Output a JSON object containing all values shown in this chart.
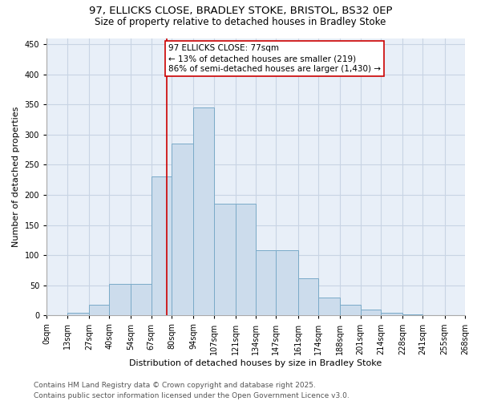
{
  "title1": "97, ELLICKS CLOSE, BRADLEY STOKE, BRISTOL, BS32 0EP",
  "title2": "Size of property relative to detached houses in Bradley Stoke",
  "xlabel": "Distribution of detached houses by size in Bradley Stoke",
  "ylabel": "Number of detached properties",
  "bar_color": "#ccdcec",
  "bar_edge_color": "#7aaac8",
  "grid_color": "#c8d4e4",
  "background_color": "#e8eff8",
  "annotation_text": "97 ELLICKS CLOSE: 77sqm\n← 13% of detached houses are smaller (219)\n86% of semi-detached houses are larger (1,430) →",
  "vline_x": 77,
  "vline_color": "#cc0000",
  "categories": [
    "0sqm",
    "13sqm",
    "27sqm",
    "40sqm",
    "54sqm",
    "67sqm",
    "80sqm",
    "94sqm",
    "107sqm",
    "121sqm",
    "134sqm",
    "147sqm",
    "161sqm",
    "174sqm",
    "188sqm",
    "201sqm",
    "214sqm",
    "228sqm",
    "241sqm",
    "255sqm",
    "268sqm"
  ],
  "bin_edges": [
    0,
    13,
    27,
    40,
    54,
    67,
    80,
    94,
    107,
    121,
    134,
    147,
    161,
    174,
    188,
    201,
    214,
    228,
    241,
    255,
    268
  ],
  "values": [
    1,
    5,
    18,
    52,
    52,
    230,
    285,
    345,
    185,
    185,
    108,
    108,
    62,
    30,
    18,
    10,
    5,
    2,
    1,
    0
  ],
  "ylim": [
    0,
    460
  ],
  "yticks": [
    0,
    50,
    100,
    150,
    200,
    250,
    300,
    350,
    400,
    450
  ],
  "footer": "Contains HM Land Registry data © Crown copyright and database right 2025.\nContains public sector information licensed under the Open Government Licence v3.0.",
  "title_fontsize": 9.5,
  "subtitle_fontsize": 8.5,
  "axis_label_fontsize": 8,
  "tick_fontsize": 7,
  "footer_fontsize": 6.5,
  "annot_fontsize": 7.5
}
